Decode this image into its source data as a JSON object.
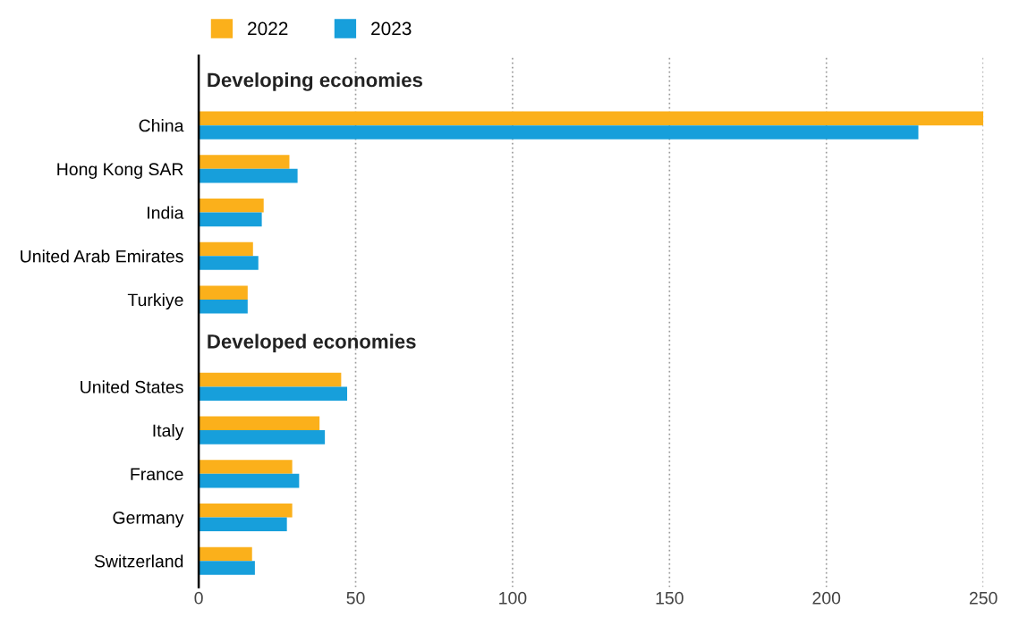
{
  "chart_data": {
    "type": "bar",
    "orientation": "horizontal",
    "categories": [
      "China",
      "Hong Kong SAR",
      "India",
      "United Arab Emirates",
      "Turkiye",
      null,
      "United States",
      "Italy",
      "France",
      "Germany",
      "Switzerland"
    ],
    "series": [
      {
        "name": "2022",
        "color": "#fbb01b",
        "values": [
          250,
          28.9,
          20.7,
          17.3,
          15.6,
          null,
          45.4,
          38.5,
          29.8,
          29.8,
          17.0
        ]
      },
      {
        "name": "2023",
        "color": "#179fdb",
        "values": [
          229.3,
          31.5,
          20.1,
          19.0,
          15.6,
          null,
          47.3,
          40.2,
          32.0,
          28.1,
          17.9
        ]
      }
    ],
    "annotations": [
      "Developing economies",
      "Developed economies"
    ],
    "xlim": [
      0,
      250
    ],
    "xticks": [
      0,
      50,
      100,
      150,
      200,
      250
    ],
    "grid": "x",
    "legend": "top left"
  }
}
